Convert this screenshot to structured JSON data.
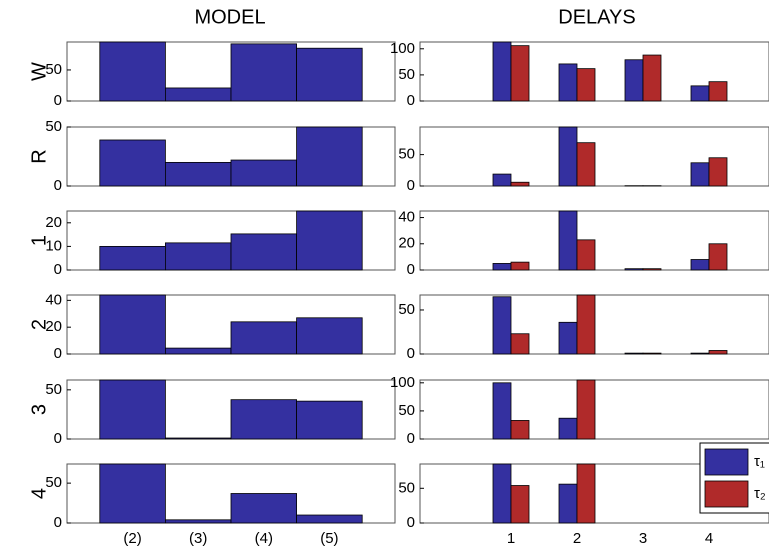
{
  "chart_data": [
    {
      "type": "bar",
      "title": "MODEL",
      "categories": [
        "(2)",
        "(3)",
        "(4)",
        "(5)"
      ],
      "color": "#3430a0",
      "panels": [
        {
          "ylabel": "W",
          "values": [
            95,
            21,
            92,
            85
          ],
          "ylim": [
            0,
            95
          ],
          "yticks": [
            0,
            50
          ]
        },
        {
          "ylabel": "R",
          "values": [
            39,
            20,
            22,
            50
          ],
          "ylim": [
            0,
            50
          ],
          "yticks": [
            0,
            50
          ]
        },
        {
          "ylabel": "1",
          "values": [
            10,
            11.5,
            15.3,
            25
          ],
          "ylim": [
            0,
            25
          ],
          "yticks": [
            0,
            10,
            20
          ]
        },
        {
          "ylabel": "2",
          "values": [
            44,
            4.4,
            24,
            27
          ],
          "ylim": [
            0,
            44
          ],
          "yticks": [
            0,
            20,
            40
          ]
        },
        {
          "ylabel": "3",
          "values": [
            60,
            1,
            40,
            38.5
          ],
          "ylim": [
            0,
            60
          ],
          "yticks": [
            0,
            50
          ]
        },
        {
          "ylabel": "4",
          "values": [
            74,
            4,
            37,
            10
          ],
          "ylim": [
            0,
            74
          ],
          "yticks": [
            0,
            50
          ]
        }
      ]
    },
    {
      "type": "grouped-bar",
      "title": "DELAYS",
      "categories": [
        "1",
        "2",
        "3",
        "4"
      ],
      "series": [
        {
          "name": "τ₁",
          "color": "#3430a0"
        },
        {
          "name": "τ₂",
          "color": "#b02a2a"
        }
      ],
      "panels": [
        {
          "values": [
            [
              113,
              71,
              79,
              29
            ],
            [
              106,
              62,
              88,
              37
            ]
          ],
          "ylim": [
            0,
            113
          ],
          "yticks": [
            0,
            50,
            100
          ]
        },
        {
          "values": [
            [
              19,
              94,
              0.5,
              37
            ],
            [
              6,
              69,
              0.5,
              45
            ]
          ],
          "ylim": [
            0,
            94
          ],
          "yticks": [
            0,
            50
          ]
        },
        {
          "values": [
            [
              5,
              45,
              1,
              8
            ],
            [
              6,
              23,
              1,
              20
            ]
          ],
          "ylim": [
            0,
            45
          ],
          "yticks": [
            0,
            20,
            40
          ]
        },
        {
          "values": [
            [
              65,
              36,
              1,
              1
            ],
            [
              23,
              67,
              1,
              4
            ]
          ],
          "ylim": [
            0,
            67
          ],
          "yticks": [
            0,
            50
          ]
        },
        {
          "values": [
            [
              100,
              37,
              0,
              0
            ],
            [
              33,
              105,
              0,
              0
            ]
          ],
          "ylim": [
            0,
            105
          ],
          "yticks": [
            0,
            50,
            100
          ]
        },
        {
          "values": [
            [
              85,
              56,
              0,
              0
            ],
            [
              54,
              85,
              0,
              0
            ]
          ],
          "ylim": [
            0,
            85
          ],
          "yticks": [
            0,
            50
          ]
        }
      ]
    }
  ]
}
